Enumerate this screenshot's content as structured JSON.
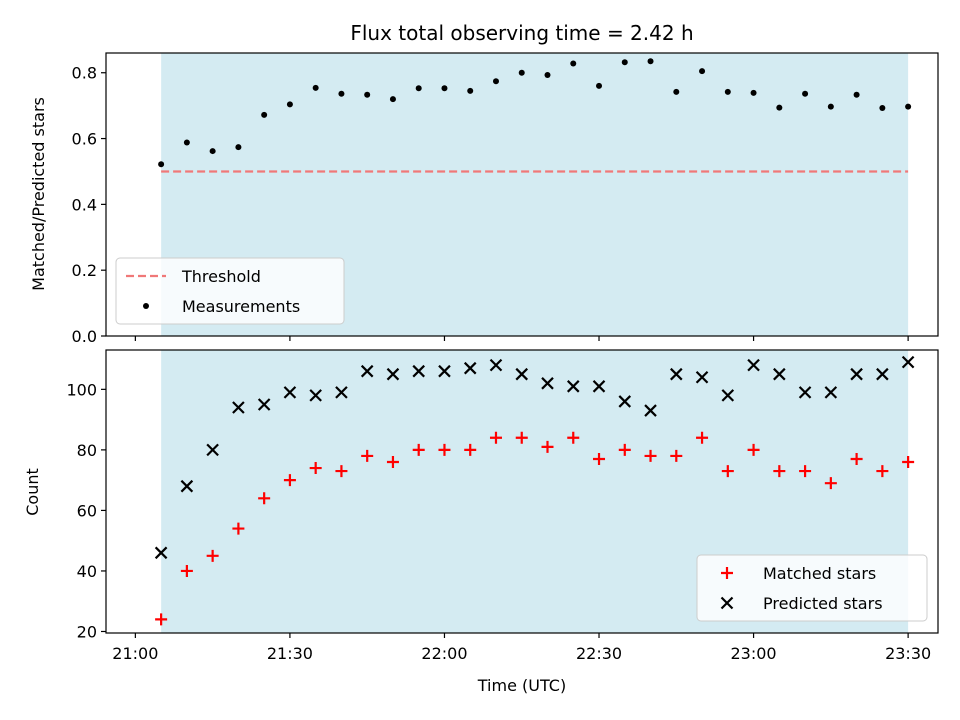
{
  "chart_data": [
    {
      "type": "scatter",
      "title": "Flux total observing time = 2.42 h",
      "xlabel": "",
      "ylabel": "Matched/Predicted stars",
      "ylim": [
        0,
        0.86
      ],
      "yticks": [
        "0.0",
        "0.2",
        "0.4",
        "0.6",
        "0.8"
      ],
      "shaded_span": [
        "21:05",
        "23:30"
      ],
      "span_color": "#add8e6",
      "threshold": {
        "name": "Threshold",
        "value": 0.5,
        "color": "#f07878",
        "style": "dashed",
        "x_start": "21:05",
        "x_end": "23:30"
      },
      "series": [
        {
          "name": "Measurements",
          "marker": "dot",
          "color": "#000000",
          "x": [
            "21:05",
            "21:10",
            "21:15",
            "21:20",
            "21:25",
            "21:30",
            "21:35",
            "21:40",
            "21:45",
            "21:50",
            "21:55",
            "22:00",
            "22:05",
            "22:10",
            "22:15",
            "22:20",
            "22:25",
            "22:30",
            "22:35",
            "22:40",
            "22:45",
            "22:50",
            "22:55",
            "23:00",
            "23:05",
            "23:10",
            "23:15",
            "23:20",
            "23:25",
            "23:30"
          ],
          "y": [
            0.522,
            0.588,
            0.562,
            0.574,
            0.672,
            0.704,
            0.754,
            0.736,
            0.733,
            0.72,
            0.753,
            0.753,
            0.745,
            0.774,
            0.8,
            0.793,
            0.828,
            0.76,
            0.832,
            0.835,
            0.742,
            0.805,
            0.742,
            0.739,
            0.694,
            0.736,
            0.697,
            0.733,
            0.693,
            0.697
          ]
        }
      ],
      "legend_position": "lower-left"
    },
    {
      "type": "scatter",
      "title": "",
      "xlabel": "Time (UTC)",
      "ylabel": "Count",
      "ylim": [
        19.5,
        113
      ],
      "yticks": [
        "20",
        "40",
        "60",
        "80",
        "100"
      ],
      "xticks": [
        "21:00",
        "21:30",
        "22:00",
        "22:30",
        "23:00",
        "23:30"
      ],
      "shaded_span": [
        "21:05",
        "23:30"
      ],
      "span_color": "#add8e6",
      "series": [
        {
          "name": "Matched stars",
          "marker": "plus",
          "color": "#ff0000",
          "x": [
            "21:05",
            "21:10",
            "21:15",
            "21:20",
            "21:25",
            "21:30",
            "21:35",
            "21:40",
            "21:45",
            "21:50",
            "21:55",
            "22:00",
            "22:05",
            "22:10",
            "22:15",
            "22:20",
            "22:25",
            "22:30",
            "22:35",
            "22:40",
            "22:45",
            "22:50",
            "22:55",
            "23:00",
            "23:05",
            "23:10",
            "23:15",
            "23:20",
            "23:25",
            "23:30"
          ],
          "y": [
            24,
            40,
            45,
            54,
            64,
            70,
            74,
            73,
            78,
            76,
            80,
            80,
            80,
            84,
            84,
            81,
            84,
            77,
            80,
            78,
            78,
            84,
            73,
            80,
            73,
            73,
            69,
            77,
            73,
            76
          ]
        },
        {
          "name": "Predicted stars",
          "marker": "x",
          "color": "#000000",
          "x": [
            "21:05",
            "21:10",
            "21:15",
            "21:20",
            "21:25",
            "21:30",
            "21:35",
            "21:40",
            "21:45",
            "21:50",
            "21:55",
            "22:00",
            "22:05",
            "22:10",
            "22:15",
            "22:20",
            "22:25",
            "22:30",
            "22:35",
            "22:40",
            "22:45",
            "22:50",
            "22:55",
            "23:00",
            "23:05",
            "23:10",
            "23:15",
            "23:20",
            "23:25",
            "23:30"
          ],
          "y": [
            46,
            68,
            80,
            94,
            95,
            99,
            98,
            99,
            106,
            105,
            106,
            106,
            107,
            108,
            105,
            102,
            101,
            101,
            96,
            93,
            105,
            104,
            98,
            108,
            105,
            99,
            99,
            105,
            105,
            109
          ]
        }
      ],
      "legend_position": "lower-right"
    }
  ]
}
